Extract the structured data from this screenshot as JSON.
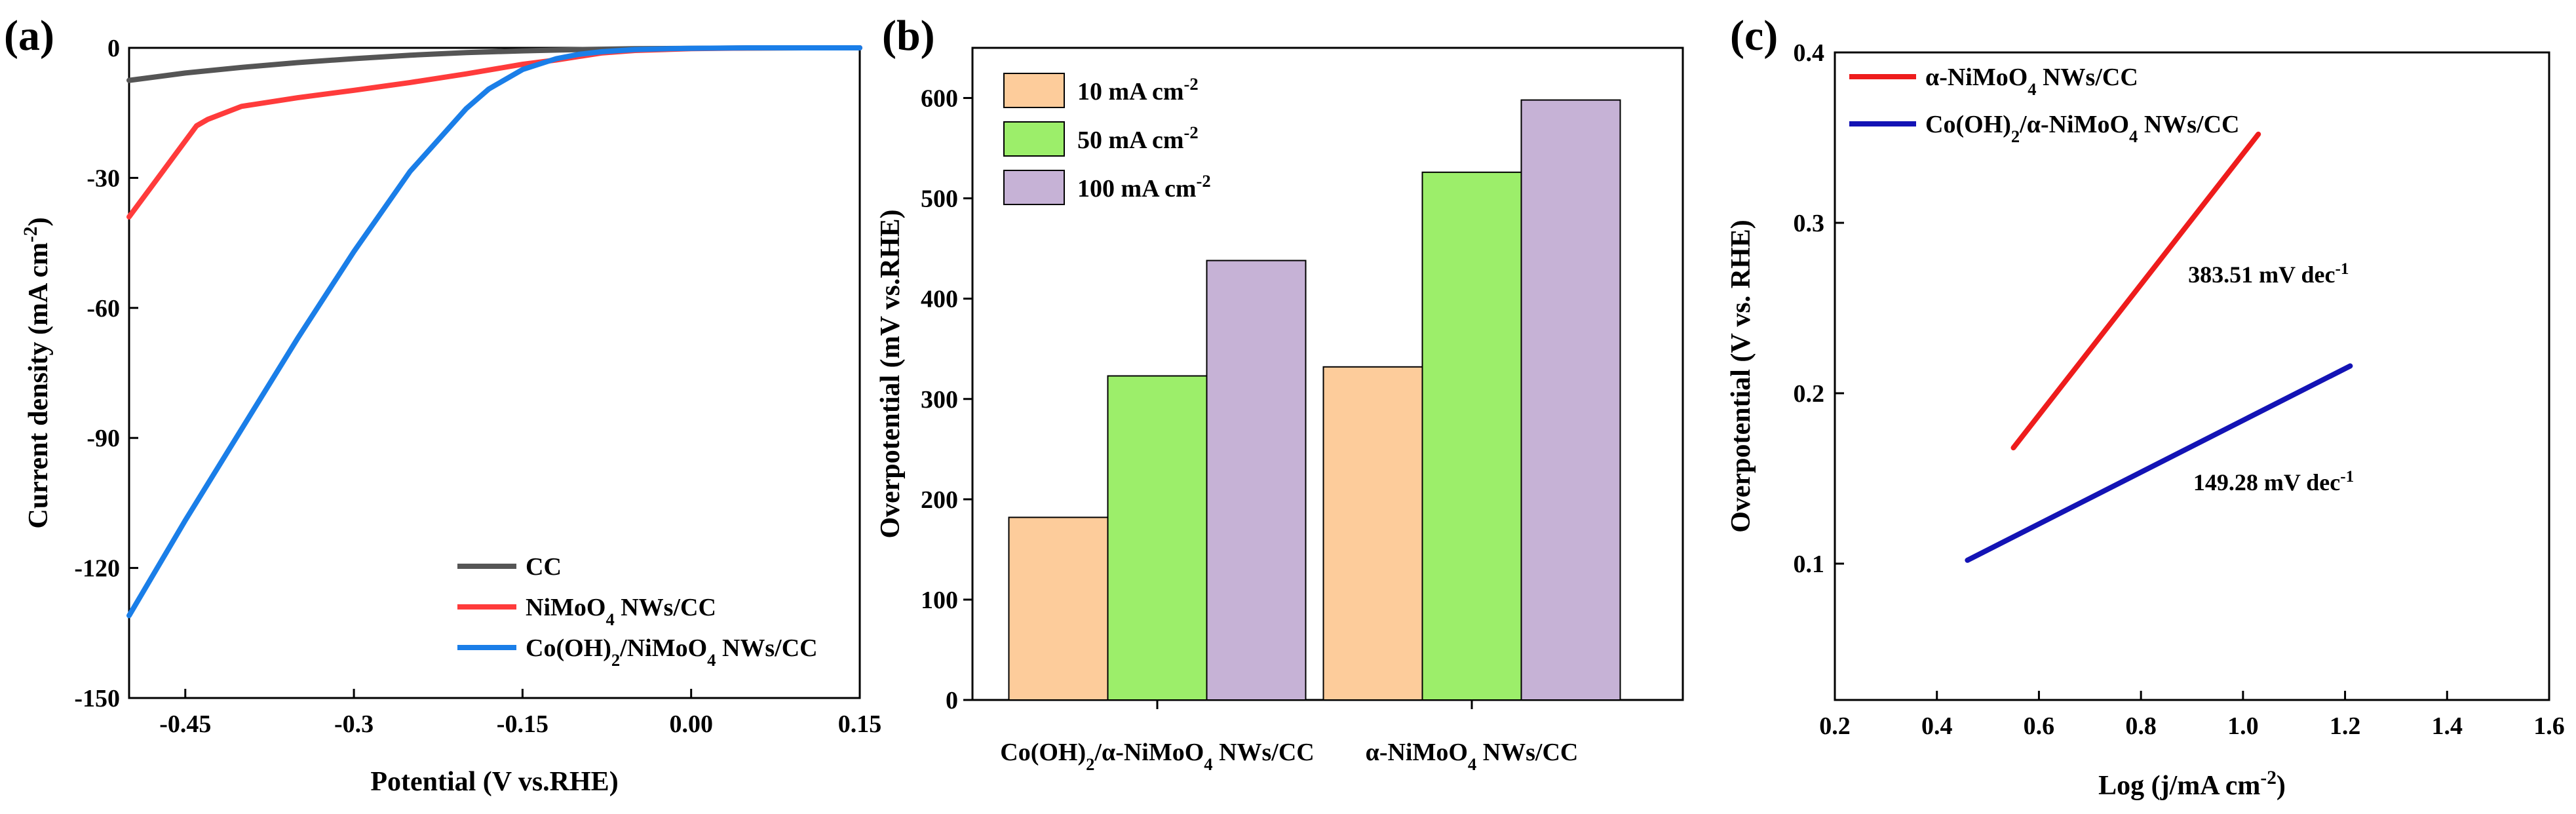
{
  "chart_data": [
    {
      "panel": "(a)",
      "type": "line",
      "xlabel": "Potential (V vs.RHE)",
      "ylabel": "Current density (mA cm^-2)",
      "xlim": [
        -0.5,
        0.15
      ],
      "ylim": [
        -150,
        0
      ],
      "xticks": [
        -0.45,
        -0.3,
        -0.15,
        0.0,
        0.15
      ],
      "xtick_labels": [
        "-0.45",
        "-0.3",
        "-0.15",
        "0.00",
        "0.15"
      ],
      "yticks": [
        0,
        -30,
        -60,
        -90,
        -120,
        -150
      ],
      "ytick_labels": [
        "0",
        "-30",
        "-60",
        "-90",
        "-120",
        "-150"
      ],
      "legend_position": "bottom-right",
      "series": [
        {
          "name": "CC",
          "label_html": [
            "CC"
          ],
          "color": "#555555",
          "x": [
            -0.5,
            -0.45,
            -0.4,
            -0.35,
            -0.3,
            -0.25,
            -0.2,
            -0.15,
            -0.1,
            -0.05,
            0.0,
            0.05,
            0.1,
            0.15
          ],
          "y": [
            -7.5,
            -5.8,
            -4.5,
            -3.4,
            -2.5,
            -1.7,
            -1.1,
            -0.7,
            -0.4,
            -0.2,
            -0.1,
            -0.05,
            0,
            0
          ]
        },
        {
          "name": "NiMoO4 NWs/CC",
          "label_parts": [
            [
              "NiMoO",
              ""
            ],
            [
              "4",
              "sub"
            ],
            [
              " NWs/CC",
              ""
            ]
          ],
          "color": "#ff3b3b",
          "x": [
            -0.5,
            -0.48,
            -0.46,
            -0.44,
            -0.43,
            -0.4,
            -0.35,
            -0.3,
            -0.25,
            -0.2,
            -0.15,
            -0.12,
            -0.1,
            -0.08,
            -0.05,
            0.0,
            0.05,
            0.1,
            0.15
          ],
          "y": [
            -39,
            -32,
            -25,
            -18,
            -16.5,
            -13.5,
            -11.5,
            -9.8,
            -8.0,
            -6.0,
            -3.8,
            -2.8,
            -2.0,
            -1.2,
            -0.6,
            -0.2,
            -0.05,
            0,
            0
          ]
        },
        {
          "name": "Co(OH)2/NiMoO4 NWs/CC",
          "label_parts": [
            [
              "Co(OH)",
              ""
            ],
            [
              "2",
              "sub"
            ],
            [
              "/NiMoO",
              ""
            ],
            [
              "4",
              "sub"
            ],
            [
              " NWs/CC",
              ""
            ]
          ],
          "color": "#1a7ee8",
          "x": [
            -0.5,
            -0.45,
            -0.4,
            -0.35,
            -0.3,
            -0.25,
            -0.2,
            -0.18,
            -0.15,
            -0.12,
            -0.1,
            -0.08,
            -0.05,
            -0.02,
            0.0,
            0.05,
            0.1,
            0.15
          ],
          "y": [
            -131,
            -109,
            -88,
            -67,
            -47,
            -28.5,
            -14,
            -9.5,
            -5.0,
            -2.5,
            -1.5,
            -0.9,
            -0.4,
            -0.2,
            -0.1,
            0,
            0,
            0
          ]
        }
      ]
    },
    {
      "panel": "(b)",
      "type": "bar",
      "xlabel": "",
      "ylabel": "Overpotential (mV vs.RHE)",
      "ylim": [
        0,
        650
      ],
      "yticks": [
        0,
        100,
        200,
        300,
        400,
        500,
        600
      ],
      "ytick_labels": [
        "0",
        "100",
        "200",
        "300",
        "400",
        "500",
        "600"
      ],
      "categories": [
        "Co(OH)2/α-NiMoO4 NWs/CC",
        "α-NiMoO4 NWs/CC"
      ],
      "category_label_parts": [
        [
          [
            "Co(OH)",
            ""
          ],
          [
            "2",
            "sub"
          ],
          [
            "/α-NiMoO",
            ""
          ],
          [
            "4",
            "sub"
          ],
          [
            " NWs/CC",
            ""
          ]
        ],
        [
          [
            "α-NiMoO",
            ""
          ],
          [
            "4",
            "sub"
          ],
          [
            " NWs/CC",
            ""
          ]
        ]
      ],
      "legend_position": "top-left",
      "series": [
        {
          "name": "10 mA cm-2",
          "label_parts": [
            [
              "10 mA cm",
              ""
            ],
            [
              "-2",
              "sup"
            ]
          ],
          "color": "#fdcc9b",
          "values": [
            182,
            332
          ]
        },
        {
          "name": "50 mA cm-2",
          "label_parts": [
            [
              "50 mA cm",
              ""
            ],
            [
              "-2",
              "sup"
            ]
          ],
          "color": "#9cee6a",
          "values": [
            323,
            526
          ]
        },
        {
          "name": "100 mA cm-2",
          "label_parts": [
            [
              "100 mA cm",
              ""
            ],
            [
              "-2",
              "sup"
            ]
          ],
          "color": "#c6b2d6",
          "values": [
            438,
            598
          ]
        }
      ]
    },
    {
      "panel": "(c)",
      "type": "line",
      "xlabel": "Log (j/mA cm^-2)",
      "ylabel": "Overpotential (V vs. RHE)",
      "xlim": [
        0.2,
        1.6
      ],
      "ylim": [
        0.02,
        0.4
      ],
      "xticks": [
        0.2,
        0.4,
        0.6,
        0.8,
        1.0,
        1.2,
        1.4,
        1.6
      ],
      "xtick_labels": [
        "0.2",
        "0.4",
        "0.6",
        "0.8",
        "1.0",
        "1.2",
        "1.4",
        "1.6"
      ],
      "yticks": [
        0.1,
        0.2,
        0.3,
        0.4
      ],
      "ytick_labels": [
        "0.1",
        "0.2",
        "0.3",
        "0.4"
      ],
      "legend_position": "top-left",
      "series": [
        {
          "name": "α-NiMoO4 NWs/CC",
          "label_parts": [
            [
              "α-NiMoO",
              ""
            ],
            [
              "4",
              "sub"
            ],
            [
              " NWs/CC",
              ""
            ]
          ],
          "color": "#ee1c1c",
          "x": [
            0.55,
            1.03
          ],
          "y": [
            0.168,
            0.352
          ]
        },
        {
          "name": "Co(OH)2/α-NiMoO4 NWs/CC",
          "label_parts": [
            [
              "Co(OH)",
              ""
            ],
            [
              "2",
              "sub"
            ],
            [
              "/α-NiMoO",
              ""
            ],
            [
              "4",
              "sub"
            ],
            [
              " NWs/CC",
              ""
            ]
          ],
          "color": "#1313b5",
          "x": [
            0.46,
            1.21
          ],
          "y": [
            0.102,
            0.216
          ]
        }
      ],
      "annotations": [
        {
          "label_parts": [
            [
              "383.51 mV dec",
              ""
            ],
            [
              "-1",
              "sup"
            ]
          ],
          "color": "#ee1c1c",
          "x": 1.05,
          "y": 0.265
        },
        {
          "label_parts": [
            [
              "149.28 mV dec",
              ""
            ],
            [
              "-1",
              "sup"
            ]
          ],
          "color": "#1313b5",
          "x": 1.06,
          "y": 0.143
        }
      ]
    }
  ]
}
